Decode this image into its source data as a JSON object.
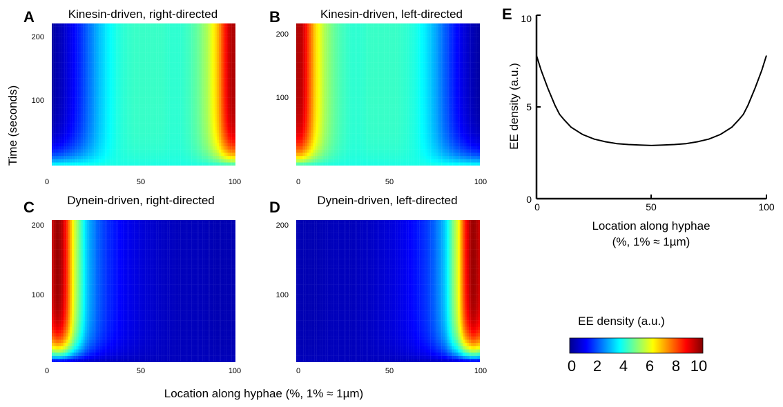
{
  "figure": {
    "shared_xlabel": "Location along hyphae (%, 1% ≈ 1µm)",
    "shared_ylabel": "Time (seconds)"
  },
  "colormap": [
    "#00008f",
    "#0000ff",
    "#0080ff",
    "#00ffff",
    "#80ff80",
    "#ffff00",
    "#ff8000",
    "#ff0000",
    "#800000"
  ],
  "colorbar": {
    "label": "EE density (a.u.)",
    "ticks": [
      "0",
      "2",
      "4",
      "6",
      "8",
      "10"
    ],
    "range": [
      0,
      10
    ]
  },
  "panels": {
    "A": {
      "letter": "A",
      "title": "Kinesin-driven, right-directed",
      "x_ticks": [
        "0",
        "50",
        "100"
      ],
      "y_ticks": [
        "200",
        "100"
      ]
    },
    "B": {
      "letter": "B",
      "title": "Kinesin-driven, left-directed",
      "x_ticks": [
        "0",
        "50",
        "100"
      ],
      "y_ticks": [
        "200",
        "100"
      ]
    },
    "C": {
      "letter": "C",
      "title": "Dynein-driven, right-directed",
      "x_ticks": [
        "0",
        "50",
        "100"
      ],
      "y_ticks": [
        "200",
        "100"
      ]
    },
    "D": {
      "letter": "D",
      "title": "Dynein-driven, left-directed",
      "x_ticks": [
        "0",
        "50",
        "100"
      ],
      "y_ticks": [
        "200",
        "100"
      ]
    },
    "E": {
      "letter": "E",
      "xlabel_line1": "Location along hyphae",
      "xlabel_line2": "(%, 1% ≈ 1µm)",
      "ylabel": "EE density (a.u.)",
      "x_ticks": [
        "0",
        "50",
        "100"
      ],
      "y_ticks": [
        "0",
        "5",
        "10"
      ]
    }
  },
  "chart_data": [
    {
      "type": "heatmap",
      "panel": "A",
      "title": "Kinesin-driven, right-directed",
      "xlabel": "Location along hyphae (%, 1% ≈ 1µm)",
      "ylabel": "Time (seconds)",
      "xlim": [
        0,
        100
      ],
      "ylim": [
        0,
        220
      ],
      "zlim": [
        0,
        10
      ],
      "steady_profile": {
        "x": [
          0,
          5,
          10,
          15,
          20,
          25,
          30,
          35,
          40,
          45,
          50,
          55,
          60,
          65,
          70,
          75,
          80,
          85,
          90,
          93,
          95,
          97,
          100
        ],
        "density": [
          0.2,
          0.5,
          1.0,
          1.6,
          2.3,
          3.0,
          3.6,
          4.0,
          4.2,
          4.3,
          4.3,
          4.3,
          4.3,
          4.2,
          4.2,
          4.4,
          4.8,
          5.5,
          6.8,
          8.0,
          8.8,
          9.4,
          9.6
        ]
      },
      "initial_density": 4.0
    },
    {
      "type": "heatmap",
      "panel": "B",
      "title": "Kinesin-driven, left-directed",
      "xlabel": "Location along hyphae (%, 1% ≈ 1µm)",
      "ylabel": "Time (seconds)",
      "xlim": [
        0,
        100
      ],
      "ylim": [
        0,
        220
      ],
      "zlim": [
        0,
        10
      ],
      "steady_profile": {
        "x": [
          0,
          3,
          5,
          7,
          10,
          15,
          20,
          25,
          30,
          35,
          40,
          45,
          50,
          55,
          60,
          65,
          70,
          75,
          80,
          85,
          90,
          95,
          100
        ],
        "density": [
          9.6,
          9.4,
          8.8,
          8.0,
          6.8,
          5.5,
          4.8,
          4.4,
          4.2,
          4.2,
          4.3,
          4.3,
          4.3,
          4.3,
          4.2,
          4.0,
          3.6,
          3.0,
          2.3,
          1.6,
          1.0,
          0.5,
          0.2
        ]
      },
      "initial_density": 4.0
    },
    {
      "type": "heatmap",
      "panel": "C",
      "title": "Dynein-driven, right-directed",
      "xlabel": "Location along hyphae (%, 1% ≈ 1µm)",
      "ylabel": "Time (seconds)",
      "xlim": [
        0,
        100
      ],
      "ylim": [
        0,
        220
      ],
      "zlim": [
        0,
        10
      ],
      "steady_profile": {
        "x": [
          0,
          3,
          5,
          8,
          10,
          12,
          15,
          18,
          20,
          25,
          30,
          35,
          40,
          50,
          60,
          70,
          80,
          90,
          100
        ],
        "density": [
          9.2,
          9.8,
          9.6,
          8.5,
          7.2,
          6.0,
          4.8,
          3.6,
          3.0,
          2.2,
          1.7,
          1.4,
          1.1,
          0.8,
          0.6,
          0.5,
          0.5,
          0.4,
          0.4
        ]
      },
      "initial_density": 0.5
    },
    {
      "type": "heatmap",
      "panel": "D",
      "title": "Dynein-driven, left-directed",
      "xlabel": "Location along hyphae (%, 1% ≈ 1µm)",
      "ylabel": "Time (seconds)",
      "xlim": [
        0,
        100
      ],
      "ylim": [
        0,
        220
      ],
      "zlim": [
        0,
        10
      ],
      "steady_profile": {
        "x": [
          0,
          10,
          20,
          30,
          40,
          50,
          60,
          65,
          70,
          75,
          80,
          82,
          85,
          88,
          90,
          92,
          95,
          97,
          100
        ],
        "density": [
          0.4,
          0.4,
          0.5,
          0.5,
          0.6,
          0.8,
          1.1,
          1.4,
          1.7,
          2.2,
          3.0,
          3.6,
          4.8,
          6.0,
          7.2,
          8.5,
          9.6,
          9.8,
          9.2
        ]
      },
      "initial_density": 0.5
    },
    {
      "type": "line",
      "panel": "E",
      "xlabel": "Location along hyphae (%, 1% ≈ 1µm)",
      "ylabel": "EE density (a.u.)",
      "xlim": [
        0,
        100
      ],
      "ylim": [
        0,
        10
      ],
      "x": [
        0,
        2,
        5,
        8,
        10,
        12,
        15,
        20,
        25,
        30,
        35,
        40,
        45,
        50,
        55,
        60,
        65,
        70,
        75,
        80,
        85,
        88,
        90,
        92,
        95,
        98,
        100
      ],
      "y": [
        7.8,
        7.0,
        6.0,
        5.1,
        4.6,
        4.3,
        3.9,
        3.5,
        3.25,
        3.1,
        3.0,
        2.95,
        2.92,
        2.9,
        2.92,
        2.95,
        3.0,
        3.1,
        3.25,
        3.5,
        3.9,
        4.3,
        4.6,
        5.1,
        6.0,
        7.0,
        7.8
      ]
    }
  ]
}
